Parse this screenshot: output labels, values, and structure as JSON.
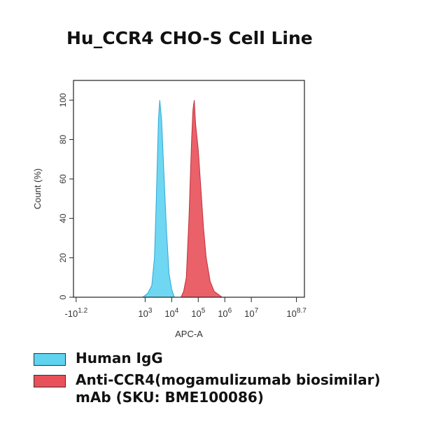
{
  "chart_data": {
    "type": "area",
    "title": "Hu_CCR4 CHO-S Cell Line",
    "x_label": "APC-A",
    "y_label": "Count (%)",
    "xlim": [
      0.3,
      9
    ],
    "xticks": [
      {
        "value": 0.4,
        "label": "-10",
        "sup": "1.2"
      },
      {
        "value": 3,
        "label": "10",
        "sup": "3"
      },
      {
        "value": 4,
        "label": "10",
        "sup": "4"
      },
      {
        "value": 5,
        "label": "10",
        "sup": "5"
      },
      {
        "value": 6,
        "label": "10",
        "sup": "6"
      },
      {
        "value": 7,
        "label": "10",
        "sup": "7"
      },
      {
        "value": 8.7,
        "label": "10",
        "sup": "8.7"
      }
    ],
    "ylim": [
      0,
      110
    ],
    "yticks": [
      0,
      20,
      40,
      60,
      80,
      100
    ],
    "series": [
      {
        "name": "Human IgG",
        "color": "#5fd3f0",
        "edge": "#2fa8d8",
        "x": [
          2.9,
          3.1,
          3.25,
          3.35,
          3.42,
          3.5,
          3.55,
          3.62,
          3.7,
          3.8,
          3.9,
          4.0,
          4.1
        ],
        "values": [
          0,
          2,
          6,
          20,
          50,
          90,
          100,
          90,
          65,
          35,
          12,
          4,
          0
        ]
      },
      {
        "name": "Anti-CCR4(mogamulizumab biosimilar) mAb (SKU: BME100086)",
        "color": "#e8505a",
        "edge": "#c0303a",
        "x": [
          4.35,
          4.45,
          4.55,
          4.65,
          4.75,
          4.8,
          4.85,
          4.9,
          5.0,
          5.1,
          5.2,
          5.3,
          5.45,
          5.6,
          5.9
        ],
        "values": [
          0,
          3,
          10,
          40,
          80,
          95,
          100,
          88,
          75,
          55,
          35,
          20,
          8,
          3,
          0
        ]
      }
    ]
  }
}
